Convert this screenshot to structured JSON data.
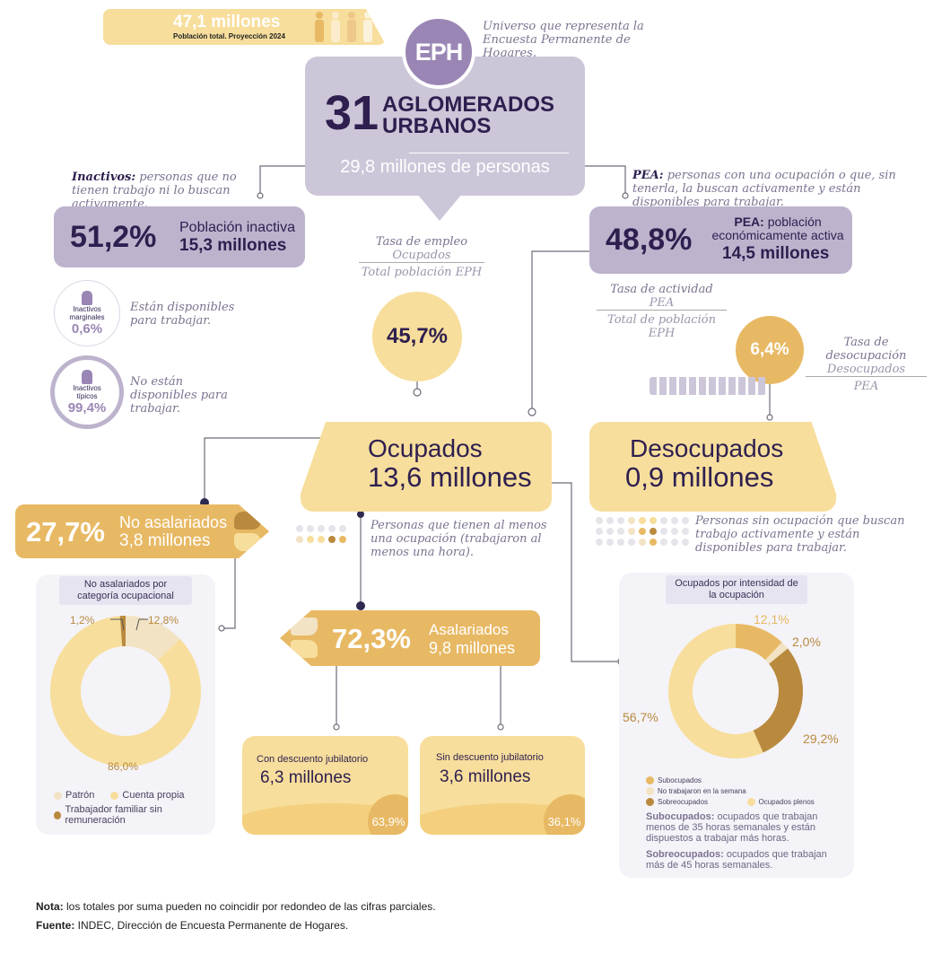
{
  "colors": {
    "purple_dark": "#2e1f4f",
    "purple": "#9a86b4",
    "purple_light": "#cdc6d9",
    "yellow_light": "#f7de9c",
    "yellow": "#e8b964",
    "brown": "#b98a3e",
    "pale": "#f2e3c4"
  },
  "banner": {
    "value": "47,1 millones",
    "caption": "Población total. Proyección 2024",
    "icon": "people-icon"
  },
  "eph": {
    "badge": "EPH",
    "note": "Universo que representa la Encuesta Permanente de Hogares.",
    "number": "31",
    "title_line1": "AGLOMERADOS",
    "title_line2": "URBANOS",
    "population": "29,8 millones de personas"
  },
  "inactivos": {
    "def_term": "Inactivos:",
    "def_text": " personas que no tienen trabajo ni lo buscan activamente.",
    "pct": "51,2%",
    "label": "Población inactiva",
    "value": "15,3 millones",
    "marginales": {
      "label": "Inactivos marginales",
      "pct": "0,6%",
      "desc": "Están disponibles para trabajar."
    },
    "tipicos": {
      "label": "Inactivos típicos",
      "pct": "99,4%",
      "desc": "No están disponibles para trabajar."
    }
  },
  "pea": {
    "def_term": "PEA:",
    "def_text": " personas con una ocupación o que, sin tenerla, la buscan activamente y están disponibles para trabajar.",
    "pct": "48,8%",
    "label_term": "PEA:",
    "label": " población económicamente activa",
    "value": "14,5 millones",
    "tasa_actividad": {
      "title": "Tasa de actividad",
      "num": "PEA",
      "den": "Total de población EPH"
    }
  },
  "empleo": {
    "title": "Tasa de empleo",
    "num": "Ocupados",
    "den": "Total población EPH",
    "pct": "45,7%"
  },
  "desocupacion": {
    "title": "Tasa de desocupación",
    "num": "Desocupados",
    "den": "PEA",
    "pct": "6,4%"
  },
  "ocupados": {
    "title": "Ocupados",
    "value": "13,6 millones",
    "desc": "Personas que tienen al menos una ocupación (trabajaron al menos una hora)."
  },
  "desocupados": {
    "title": "Desocupados",
    "value": "0,9 millones",
    "desc": "Personas sin ocupación que buscan trabajo activamente y están disponibles para trabajar."
  },
  "no_asalariados": {
    "pct": "27,7%",
    "label": "No asalariados",
    "value": "3,8 millones"
  },
  "asalariados": {
    "pct": "72,3%",
    "label": "Asalariados",
    "value": "9,8 millones",
    "con": {
      "label": "Con descuento jubilatorio",
      "value": "6,3 millones",
      "pct": "63,9%"
    },
    "sin": {
      "label": "Sin descuento jubilatorio",
      "value": "3,6 millones",
      "pct": "36,1%"
    }
  },
  "chart_no_asalariados": {
    "type": "pie",
    "title": "No asalariados por categoría ocupacional",
    "slices": [
      {
        "name": "Patrón",
        "value": 12.8,
        "label": "12,8%",
        "color": "#f2e3c4"
      },
      {
        "name": "Cuenta propia",
        "value": 86.0,
        "label": "86,0%",
        "color": "#f7de9c"
      },
      {
        "name": "Trabajador familiar sin remuneración",
        "value": 1.2,
        "label": "1,2%",
        "color": "#b98a3e"
      }
    ]
  },
  "chart_intensidad": {
    "type": "pie",
    "title": "Ocupados por intensidad de la ocupación",
    "slices": [
      {
        "name": "Subocupados",
        "value": 12.1,
        "label": "12,1%",
        "color": "#e8b964"
      },
      {
        "name": "No trabajaron en la semana",
        "value": 2.0,
        "label": "2,0%",
        "color": "#f2e3c4"
      },
      {
        "name": "Sobreocupados",
        "value": 29.2,
        "label": "29,2%",
        "color": "#b98a3e"
      },
      {
        "name": "Ocupados plenos",
        "value": 56.7,
        "label": "56,7%",
        "color": "#f7de9c"
      }
    ],
    "notes": [
      {
        "term": "Subocupados:",
        "text": " ocupados que trabajan menos de 35 horas semanales y están dispuestos a trabajar más horas."
      },
      {
        "term": "Sobreocupados:",
        "text": " ocupados que trabajan más de 45 horas semanales."
      }
    ]
  },
  "footer": {
    "nota_term": "Nota:",
    "nota": " los totales por suma pueden no coincidir por redondeo de las cifras parciales.",
    "fuente_term": "Fuente:",
    "fuente": " INDEC, Dirección de Encuesta Permanente de Hogares."
  }
}
